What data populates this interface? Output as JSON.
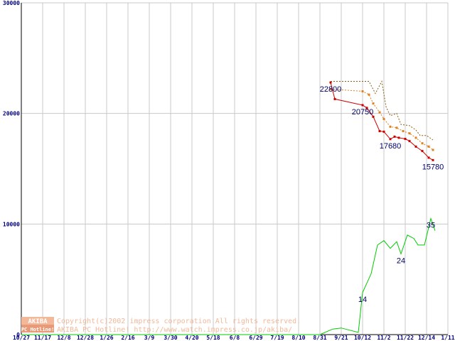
{
  "chart_data": {
    "type": "line",
    "title": "",
    "xlabel": "",
    "ylabel": "",
    "ylim": [
      0,
      30000
    ],
    "y_ticks": [
      0,
      10000,
      20000,
      30000
    ],
    "x_tick_labels": [
      "10/27",
      "11/17",
      "12/8",
      "12/28",
      "1/26",
      "2/16",
      "3/9",
      "3/30",
      "4/20",
      "5/18",
      "6/8",
      "6/29",
      "7/19",
      "8/10",
      "8/31",
      "9/21",
      "10/12",
      "11/2",
      "11/22",
      "12/14",
      "1/11"
    ],
    "grid": true,
    "series": [
      {
        "color": "#cc0000",
        "style": "solid-markers",
        "points": [
          [
            14.5,
            22800
          ],
          [
            14.7,
            21300
          ],
          [
            16.0,
            20750
          ],
          [
            16.2,
            20500
          ],
          [
            16.5,
            19700
          ],
          [
            16.8,
            18400
          ],
          [
            17.0,
            18350
          ],
          [
            17.3,
            17680
          ],
          [
            17.5,
            17900
          ],
          [
            17.7,
            17800
          ],
          [
            18.0,
            17700
          ],
          [
            18.2,
            17500
          ],
          [
            18.5,
            17000
          ],
          [
            18.8,
            16600
          ],
          [
            19.1,
            16000
          ],
          [
            19.3,
            15780
          ]
        ]
      },
      {
        "color": "#e08020",
        "style": "dashed-markers",
        "points": [
          [
            14.5,
            22200
          ],
          [
            16.0,
            22000
          ],
          [
            16.3,
            21700
          ],
          [
            16.5,
            20900
          ],
          [
            16.8,
            20100
          ],
          [
            17.0,
            19500
          ],
          [
            17.3,
            18800
          ],
          [
            17.6,
            18700
          ],
          [
            17.9,
            18400
          ],
          [
            18.2,
            18200
          ],
          [
            18.5,
            17800
          ],
          [
            18.8,
            17300
          ],
          [
            19.1,
            17000
          ],
          [
            19.3,
            16700
          ]
        ]
      },
      {
        "color": "#8a5a10",
        "style": "dashed",
        "points": [
          [
            14.5,
            22900
          ],
          [
            16.3,
            22900
          ],
          [
            16.6,
            21800
          ],
          [
            16.9,
            22900
          ],
          [
            17.1,
            20600
          ],
          [
            17.3,
            19800
          ],
          [
            17.6,
            20000
          ],
          [
            17.8,
            19000
          ],
          [
            18.2,
            18900
          ],
          [
            18.5,
            18500
          ],
          [
            18.7,
            18000
          ],
          [
            19.0,
            18000
          ],
          [
            19.3,
            17600
          ]
        ]
      },
      {
        "color": "#00cc00",
        "style": "solid",
        "points": [
          [
            0,
            0
          ],
          [
            14.0,
            0
          ],
          [
            14.6,
            500
          ],
          [
            15.0,
            600
          ],
          [
            15.4,
            400
          ],
          [
            15.8,
            200
          ],
          [
            16.0,
            3800
          ],
          [
            16.4,
            5500
          ],
          [
            16.7,
            8100
          ],
          [
            17.0,
            8500
          ],
          [
            17.3,
            7800
          ],
          [
            17.6,
            8400
          ],
          [
            17.8,
            7300
          ],
          [
            18.1,
            9000
          ],
          [
            18.4,
            8700
          ],
          [
            18.6,
            8100
          ],
          [
            18.9,
            8100
          ],
          [
            19.2,
            10500
          ],
          [
            19.4,
            9400
          ]
        ]
      }
    ],
    "data_labels": [
      {
        "text": "22800",
        "x": 14.5,
        "y": 22800
      },
      {
        "text": "20750",
        "x": 16.0,
        "y": 20750
      },
      {
        "text": "17680",
        "x": 17.3,
        "y": 17680
      },
      {
        "text": "15780",
        "x": 19.3,
        "y": 15780
      },
      {
        "text": "14",
        "x": 16.0,
        "y": 3800
      },
      {
        "text": "24",
        "x": 17.8,
        "y": 7300
      },
      {
        "text": "35",
        "x": 19.2,
        "y": 10500
      }
    ]
  },
  "watermark": {
    "logo_top": "AKIBA",
    "logo_bottom": "PC Hotline!",
    "line1": "Copyright(c)2002 impress corporation All rights reserved.",
    "line2": "AKIBA PC Hotline! http://www.watch.impress.co.jp/akiba/"
  }
}
